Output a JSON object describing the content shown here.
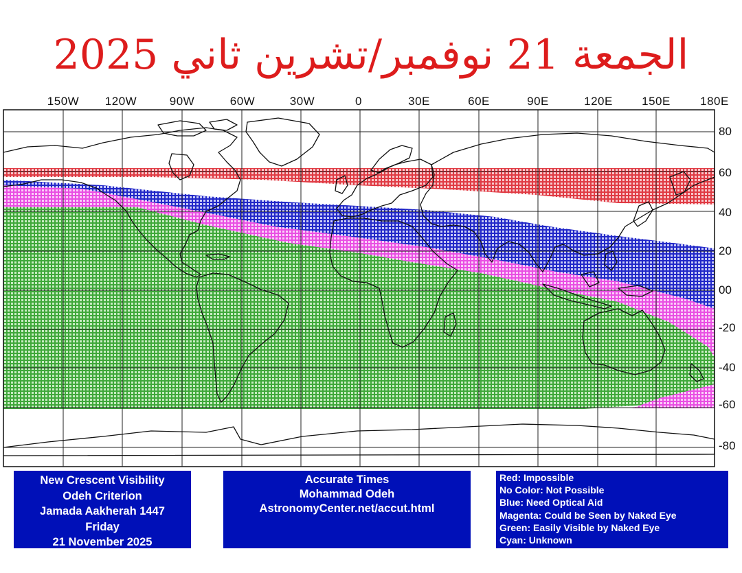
{
  "title": "الجمعة 21 نوفمبر/تشرين ثاني 2025",
  "map": {
    "longitude_labels": [
      "150W",
      "120W",
      "90W",
      "60W",
      "30W",
      "0",
      "30E",
      "60E",
      "90E",
      "120E",
      "150E",
      "180E"
    ],
    "latitude_labels": [
      "80",
      "60",
      "40",
      "20",
      "00",
      "-20",
      "-40",
      "-60",
      "-80"
    ],
    "visibility_zones": [
      {
        "name": "red-impossible",
        "color": "#e8484f",
        "lat_north": 61,
        "lat_south": 47
      },
      {
        "name": "blue-optical-aid",
        "color": "#2b2fd0",
        "note": "diagonal band"
      },
      {
        "name": "magenta-naked-eye",
        "color": "#f06ee8",
        "note": "diagonal band"
      },
      {
        "name": "green-easily-visible",
        "color": "#3fa83a",
        "lat_south": -60
      }
    ]
  },
  "info_left": {
    "line1": "New Crescent Visibility",
    "line2": "Odeh Criterion",
    "line3": "Jamada Aakherah 1447",
    "line4": "Friday",
    "line5": "21 November 2025"
  },
  "info_mid": {
    "line1": "Accurate Times",
    "line2": "Mohammad Odeh",
    "line3": "AstronomyCenter.net/accut.html"
  },
  "legend": {
    "red": "Red: Impossible",
    "none": "No Color: Not Possible",
    "blue": "Blue: Need Optical Aid",
    "magenta": "Magenta: Could be Seen by Naked Eye",
    "green": "Green: Easily Visible by Naked Eye",
    "cyan": "Cyan: Unknown"
  }
}
